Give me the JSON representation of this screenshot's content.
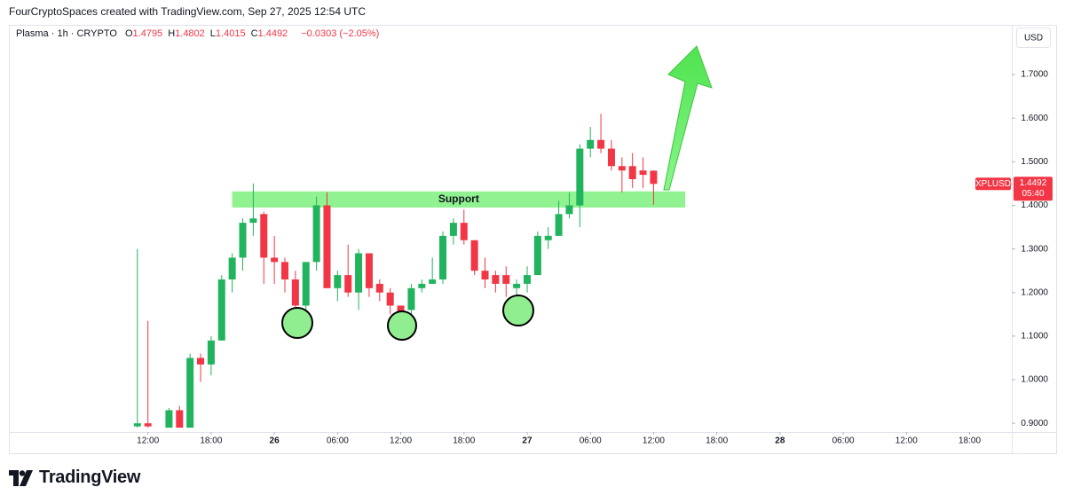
{
  "header": {
    "credit": "FourCryptoSpaces created with TradingView.com, Sep 27, 2025 12:54 UTC",
    "symbol": "Plasma · 1h · CRYPTO",
    "ohlc": [
      {
        "label": "O",
        "value": "1.4795"
      },
      {
        "label": "H",
        "value": "1.4802"
      },
      {
        "label": "L",
        "value": "1.4015"
      },
      {
        "label": "C",
        "value": "1.4492"
      }
    ],
    "change": "−0.0303 (−2.05%)",
    "currency": "USD"
  },
  "footer": {
    "brand": "TradingView"
  },
  "chart_data": {
    "type": "candlestick",
    "up_color": "#22b35e",
    "down_color": "#f23645",
    "x": [
      11,
      12,
      14,
      15,
      16,
      17,
      18,
      19,
      20,
      21,
      22,
      23,
      24,
      25,
      26,
      27,
      28,
      29,
      30,
      31,
      32,
      33,
      34,
      35,
      36,
      37,
      38,
      39,
      40,
      41,
      42,
      43,
      44,
      45,
      46,
      47,
      48,
      49,
      50,
      51,
      52,
      53,
      54,
      55,
      56,
      57,
      58,
      59,
      60
    ],
    "open": [
      0.893,
      0.9,
      0.89,
      0.93,
      0.89,
      1.05,
      1.035,
      1.09,
      1.23,
      1.28,
      1.36,
      1.38,
      1.28,
      1.27,
      1.23,
      1.17,
      1.27,
      1.4,
      1.21,
      1.24,
      1.2,
      1.29,
      1.22,
      1.2,
      1.17,
      1.16,
      1.21,
      1.22,
      1.23,
      1.33,
      1.36,
      1.32,
      1.25,
      1.24,
      1.24,
      1.21,
      1.22,
      1.24,
      1.32,
      1.33,
      1.38,
      1.4,
      1.53,
      1.55,
      1.53,
      1.49,
      1.49,
      1.48,
      1.4795
    ],
    "high": [
      1.3,
      1.135,
      0.935,
      0.94,
      1.06,
      1.06,
      1.1,
      1.24,
      1.29,
      1.37,
      1.45,
      1.385,
      1.33,
      1.28,
      1.25,
      1.27,
      1.42,
      1.43,
      1.25,
      1.31,
      1.3,
      1.29,
      1.23,
      1.21,
      1.17,
      1.22,
      1.23,
      1.28,
      1.34,
      1.37,
      1.39,
      1.32,
      1.28,
      1.25,
      1.26,
      1.23,
      1.26,
      1.34,
      1.35,
      1.41,
      1.43,
      1.54,
      1.58,
      1.61,
      1.55,
      1.51,
      1.52,
      1.51,
      1.4802
    ],
    "low": [
      0.89,
      0.89,
      0.89,
      0.89,
      0.89,
      0.995,
      1.01,
      1.09,
      1.2,
      1.25,
      1.33,
      1.22,
      1.22,
      1.2,
      1.12,
      1.15,
      1.25,
      1.21,
      1.18,
      1.19,
      1.16,
      1.19,
      1.18,
      1.15,
      1.12,
      1.15,
      1.2,
      1.22,
      1.22,
      1.31,
      1.31,
      1.24,
      1.21,
      1.2,
      1.19,
      1.17,
      1.2,
      1.24,
      1.3,
      1.33,
      1.37,
      1.35,
      1.51,
      1.52,
      1.48,
      1.43,
      1.44,
      1.44,
      1.4015
    ],
    "close": [
      0.9,
      0.893,
      0.93,
      0.89,
      1.05,
      1.035,
      1.09,
      1.23,
      1.28,
      1.36,
      1.37,
      1.28,
      1.27,
      1.23,
      1.17,
      1.27,
      1.4,
      1.21,
      1.24,
      1.2,
      1.29,
      1.21,
      1.2,
      1.17,
      1.15,
      1.21,
      1.22,
      1.23,
      1.33,
      1.36,
      1.32,
      1.25,
      1.23,
      1.22,
      1.22,
      1.22,
      1.24,
      1.33,
      1.33,
      1.38,
      1.4,
      1.53,
      1.55,
      1.53,
      1.49,
      1.48,
      1.46,
      1.47,
      1.4492
    ],
    "xlim": [
      -1.2,
      94
    ],
    "xticks": [
      {
        "value": 12,
        "label": "12:00"
      },
      {
        "value": 18,
        "label": "18:00"
      },
      {
        "value": 24,
        "label": "26"
      },
      {
        "value": 30,
        "label": "06:00"
      },
      {
        "value": 36,
        "label": "12:00"
      },
      {
        "value": 42,
        "label": "18:00"
      },
      {
        "value": 48,
        "label": "27"
      },
      {
        "value": 54,
        "label": "06:00"
      },
      {
        "value": 60,
        "label": "12:00"
      },
      {
        "value": 66,
        "label": "18:00"
      },
      {
        "value": 72,
        "label": "28"
      },
      {
        "value": 78,
        "label": "06:00"
      },
      {
        "value": 84,
        "label": "12:00"
      },
      {
        "value": 90,
        "label": "18:00"
      }
    ],
    "ylim": [
      0.88,
      1.81
    ],
    "yticks": [
      {
        "value": 0.9,
        "label": "0.9000"
      },
      {
        "value": 1.0,
        "label": "1.0000"
      },
      {
        "value": 1.1,
        "label": "1.1000"
      },
      {
        "value": 1.2,
        "label": "1.2000"
      },
      {
        "value": 1.3,
        "label": "1.3000"
      },
      {
        "value": 1.4,
        "label": "1.4000"
      },
      {
        "value": 1.5,
        "label": "1.5000"
      },
      {
        "value": 1.6,
        "label": "1.6000"
      },
      {
        "value": 1.7,
        "label": "1.7000"
      }
    ],
    "support": {
      "label": "Support",
      "xlim": [
        20,
        63
      ],
      "ylim": [
        1.395,
        1.432
      ],
      "color": "#7df07d"
    },
    "last_price": {
      "symbol": "XPLUSD",
      "value": 1.4492,
      "countdown": "05:40"
    }
  }
}
